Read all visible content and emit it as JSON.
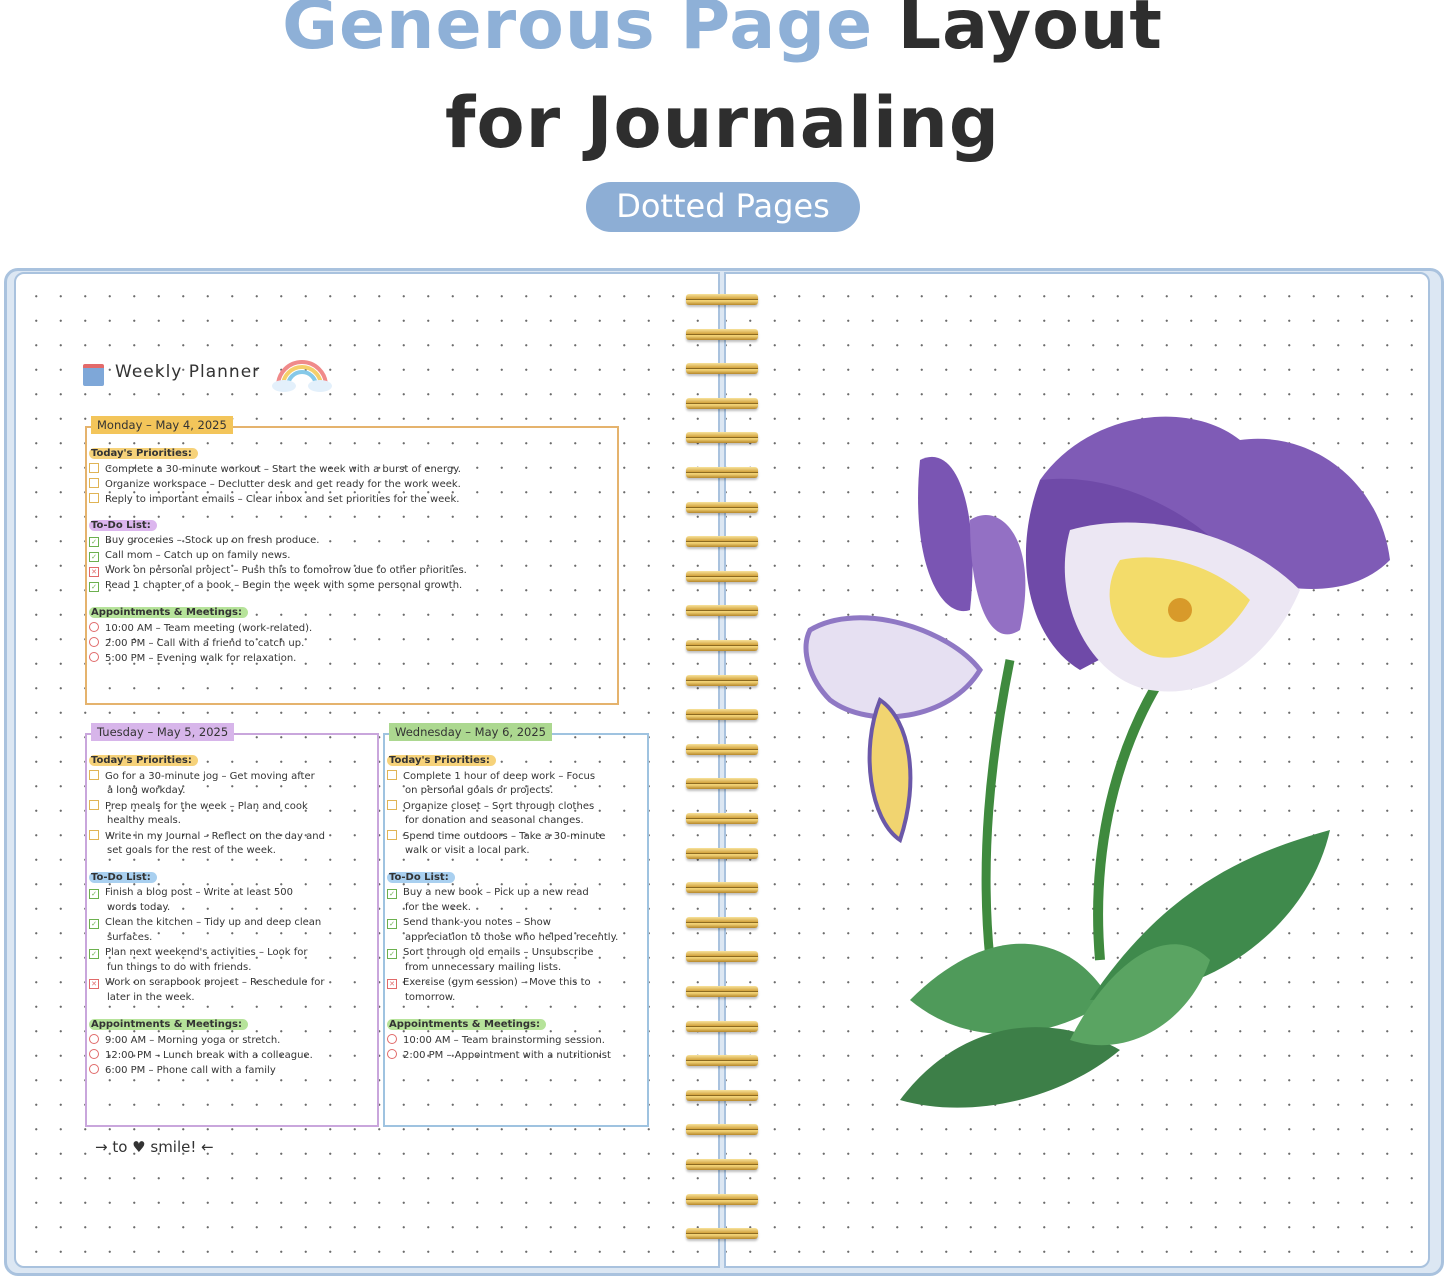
{
  "headline": {
    "line1_accent": "Generous Page",
    "line1_rest": "Layout",
    "line2": "for  Journaling"
  },
  "badge": "Dotted Pages",
  "colors": {
    "accent": "#8eb0d7",
    "monday": "#f3c55a",
    "tuesday": "#d7b5ea",
    "wednesday": "#acd890",
    "done": "#6cb04f",
    "deferred": "#e06a6a",
    "open": "#e0b455"
  },
  "planner": {
    "title": "Weekly Planner",
    "days": [
      {
        "header": "Monday  –  May 4, 2025",
        "priorities_label": "Today's Priorities:",
        "priorities": [
          "Complete a 30-minute workout  –  Start the week with a burst of energy.",
          "Organize workspace  –  Declutter desk and get ready for the work week.",
          "Reply to important emails  –  Clear inbox and set priorities for the week."
        ],
        "todo_label": "To-Do List:",
        "todos": [
          {
            "text": "Buy groceries  –  Stock up on fresh produce.",
            "status": "done"
          },
          {
            "text": "Call mom  –  Catch up on family news.",
            "status": "done"
          },
          {
            "text": "Work on personal project  –  Push this to tomorrow due to other priorities.",
            "status": "deferred"
          },
          {
            "text": "Read 1 chapter of a book  –  Begin the week with some personal growth.",
            "status": "done"
          }
        ],
        "appointments_label": "Appointments & Meetings:",
        "appointments": [
          "10:00 AM  –  Team meeting (work-related).",
          "2:00 PM  –  Call with a friend to catch up.",
          "5:00 PM  –  Evening walk for relaxation."
        ]
      },
      {
        "header": "Tuesday  –  May 5, 2025",
        "priorities_label": "Today's Priorities:",
        "priorities": [
          "Go for a 30-minute jog  –  Get moving after|a long workday.",
          "Prep meals for the week  –  Plan and cook|healthy meals.",
          "Write in my Journal  –  Reflect on the day and|set goals for the rest of the week."
        ],
        "todo_label": "To-Do List:",
        "todos": [
          {
            "text": "Finish a blog post  –  Write at least 500|words today.",
            "status": "done"
          },
          {
            "text": "Clean the kitchen  –  Tidy up and deep clean|surfaces.",
            "status": "done"
          },
          {
            "text": "Plan next weekend's activities  –  Look for|fun things to do with friends.",
            "status": "done"
          },
          {
            "text": "Work on scrapbook project  –  Reschedule for|later in the week.",
            "status": "deferred"
          }
        ],
        "appointments_label": "Appointments & Meetings:",
        "appointments": [
          "9:00 AM  –  Morning yoga or stretch.",
          "12:00 PM  –  Lunch break with a colleague.",
          "6:00 PM  –  Phone call with a family"
        ]
      },
      {
        "header": "Wednesday  –  May 6, 2025",
        "priorities_label": "Today's Priorities:",
        "priorities": [
          "Complete 1 hour of deep work  –  Focus|on personal goals or projects.",
          "Organize closet  –  Sort through clothes|for donation and seasonal changes.",
          "Spend time outdoors  –  Take a 30-minute|walk or visit a local park."
        ],
        "todo_label": "To-Do List:",
        "todos": [
          {
            "text": "Buy a new book  –  Pick up a new read|for the week.",
            "status": "done"
          },
          {
            "text": "Send thank-you notes  –  Show|appreciation to those who helped recently.",
            "status": "done"
          },
          {
            "text": "Sort through old emails  –  Unsubscribe|from unnecessary mailing lists.",
            "status": "done"
          },
          {
            "text": "Exercise (gym session)  –  Move this to|tomorrow.",
            "status": "deferred"
          }
        ],
        "appointments_label": "Appointments & Meetings:",
        "appointments": [
          "10:00 AM  –  Team brainstorming session.",
          "2:00 PM  –  Appointment with a nutritionist"
        ]
      }
    ],
    "footer": "→ to ♥ smile! ←"
  }
}
